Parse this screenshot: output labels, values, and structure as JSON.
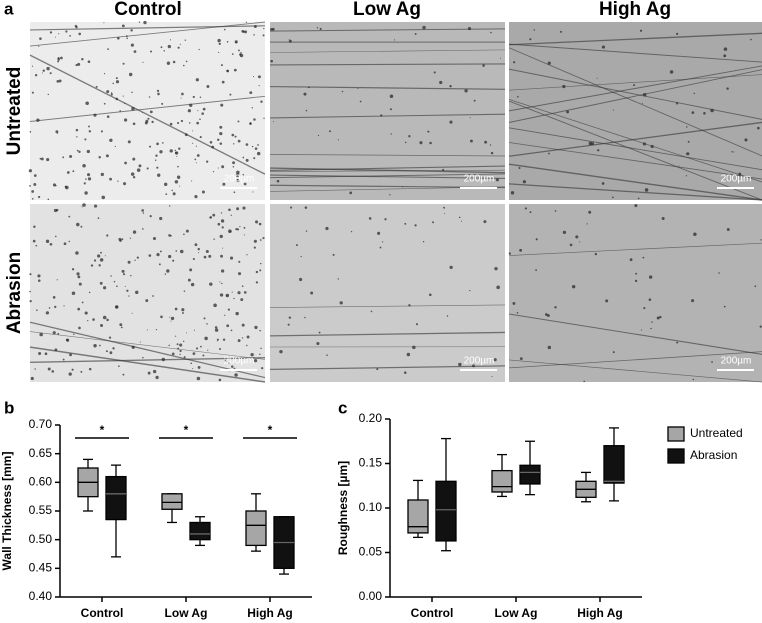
{
  "panel_a": {
    "label": "a",
    "columns": [
      "Control",
      "Low Ag",
      "High Ag"
    ],
    "rows": [
      "Untreated",
      "Abrasion"
    ],
    "scale_bar": "200µm"
  },
  "chart_data": [
    {
      "type": "box",
      "panel": "b",
      "ylabel": "Wall Thickness [mm]",
      "categories": [
        "Control",
        "Low Ag",
        "High Ag"
      ],
      "ylim": [
        0.4,
        0.7
      ],
      "yticks": [
        {
          "value": 0.4,
          "label": "0.40"
        },
        {
          "value": 0.45,
          "label": "0.45"
        },
        {
          "value": 0.5,
          "label": "0.50"
        },
        {
          "value": 0.55,
          "label": "0.55"
        },
        {
          "value": 0.6,
          "label": "0.60"
        },
        {
          "value": 0.65,
          "label": "0.65"
        },
        {
          "value": 0.7,
          "label": "0.70"
        }
      ],
      "significance": [
        "*",
        "*",
        "*"
      ],
      "series": [
        {
          "color": "#a6a6a6",
          "values": [
            {
              "min": 0.55,
              "q1": 0.575,
              "median": 0.6,
              "q3": 0.625,
              "max": 0.64
            },
            {
              "min": 0.53,
              "q1": 0.553,
              "median": 0.565,
              "q3": 0.58,
              "max": 0.58
            },
            {
              "min": 0.48,
              "q1": 0.49,
              "median": 0.525,
              "q3": 0.55,
              "max": 0.58
            }
          ]
        },
        {
          "color": "#111111",
          "values": [
            {
              "min": 0.47,
              "q1": 0.535,
              "median": 0.58,
              "q3": 0.61,
              "max": 0.63
            },
            {
              "min": 0.49,
              "q1": 0.5,
              "median": 0.51,
              "q3": 0.53,
              "max": 0.54
            },
            {
              "min": 0.44,
              "q1": 0.45,
              "median": 0.495,
              "q3": 0.54,
              "max": 0.54
            }
          ]
        }
      ]
    },
    {
      "type": "box",
      "panel": "c",
      "ylabel": "Roughness [µm]",
      "categories": [
        "Control",
        "Low Ag",
        "High Ag"
      ],
      "ylim": [
        0,
        0.2
      ],
      "yticks": [
        {
          "value": 0,
          "label": "0.00"
        },
        {
          "value": 0.05,
          "label": "0.05"
        },
        {
          "value": 0.1,
          "label": "0.10"
        },
        {
          "value": 0.15,
          "label": "0.15"
        },
        {
          "value": 0.2,
          "label": "0.20"
        }
      ],
      "legend": "right",
      "series": [
        {
          "name": "Untreated",
          "color": "#a6a6a6",
          "values": [
            {
              "min": 0.067,
              "q1": 0.072,
              "median": 0.079,
              "q3": 0.109,
              "max": 0.131
            },
            {
              "min": 0.113,
              "q1": 0.118,
              "median": 0.124,
              "q3": 0.142,
              "max": 0.16
            },
            {
              "min": 0.107,
              "q1": 0.112,
              "median": 0.121,
              "q3": 0.13,
              "max": 0.14
            }
          ]
        },
        {
          "name": "Abrasion",
          "color": "#111111",
          "values": [
            {
              "min": 0.052,
              "q1": 0.063,
              "median": 0.098,
              "q3": 0.13,
              "max": 0.178
            },
            {
              "min": 0.115,
              "q1": 0.127,
              "median": 0.14,
              "q3": 0.148,
              "max": 0.175
            },
            {
              "min": 0.108,
              "q1": 0.128,
              "median": 0.13,
              "q3": 0.17,
              "max": 0.19
            }
          ]
        }
      ]
    }
  ]
}
